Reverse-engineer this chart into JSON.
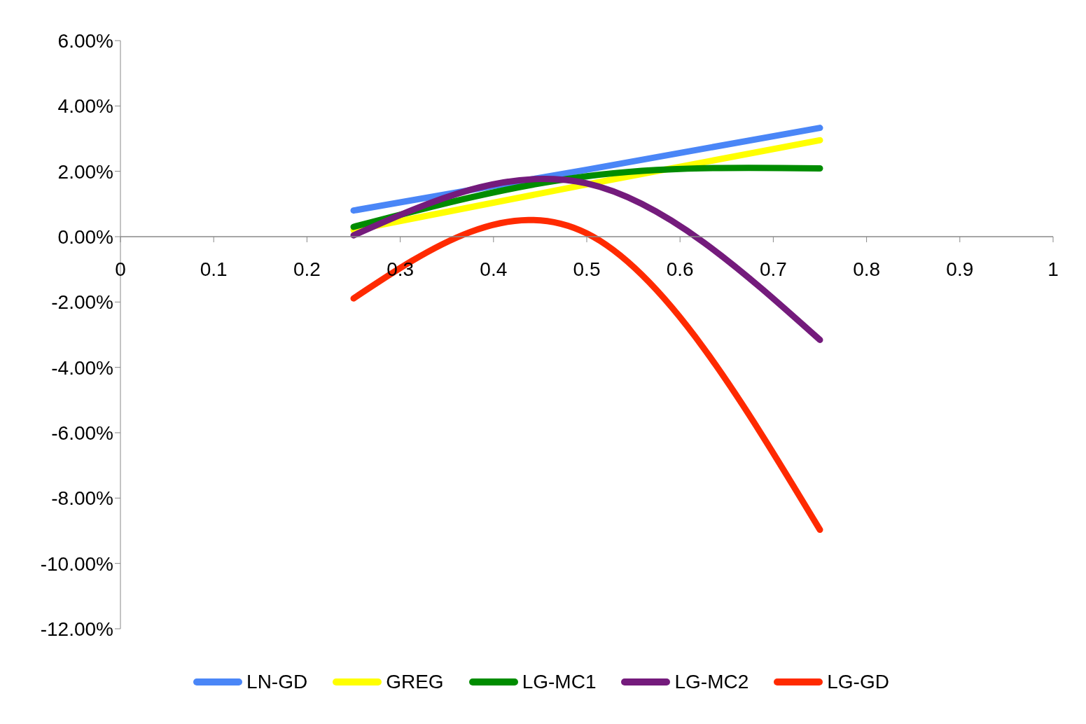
{
  "chart_data": {
    "type": "line",
    "x": [
      0.25,
      0.5,
      0.75
    ],
    "series": [
      {
        "name": "LN-GD",
        "color": "#4a86f7",
        "values": [
          0.8,
          2.05,
          3.33
        ]
      },
      {
        "name": "GREG",
        "color": "#ffff00",
        "values": [
          0.2,
          1.6,
          2.95
        ]
      },
      {
        "name": "LG-MC1",
        "color": "#008c00",
        "values": [
          0.3,
          1.85,
          2.09
        ]
      },
      {
        "name": "LG-MC2",
        "color": "#741b7c",
        "values": [
          0.04,
          1.63,
          -3.16
        ]
      },
      {
        "name": "LG-GD",
        "color": "#ff2a00",
        "values": [
          -1.89,
          0.1,
          -8.97
        ]
      }
    ],
    "xlim": [
      0,
      1
    ],
    "xticks": [
      0,
      0.1,
      0.2,
      0.3,
      0.4,
      0.5,
      0.6,
      0.7,
      0.8,
      0.9,
      1
    ],
    "ylim": [
      -12,
      6
    ],
    "yticks": [
      {
        "value": 6,
        "label": "6.00%"
      },
      {
        "value": 4,
        "label": "4.00%"
      },
      {
        "value": 2,
        "label": "2.00%"
      },
      {
        "value": 0,
        "label": "0.00%"
      },
      {
        "value": -2,
        "label": "-2.00%"
      },
      {
        "value": -4,
        "label": "-4.00%"
      },
      {
        "value": -6,
        "label": "-6.00%"
      },
      {
        "value": -8,
        "label": "-8.00%"
      },
      {
        "value": -10,
        "label": "-10.00%"
      },
      {
        "value": -12,
        "label": "-12.00%"
      }
    ],
    "grid": false,
    "legend": "bottom",
    "marker": "none",
    "line_style": "solid"
  }
}
